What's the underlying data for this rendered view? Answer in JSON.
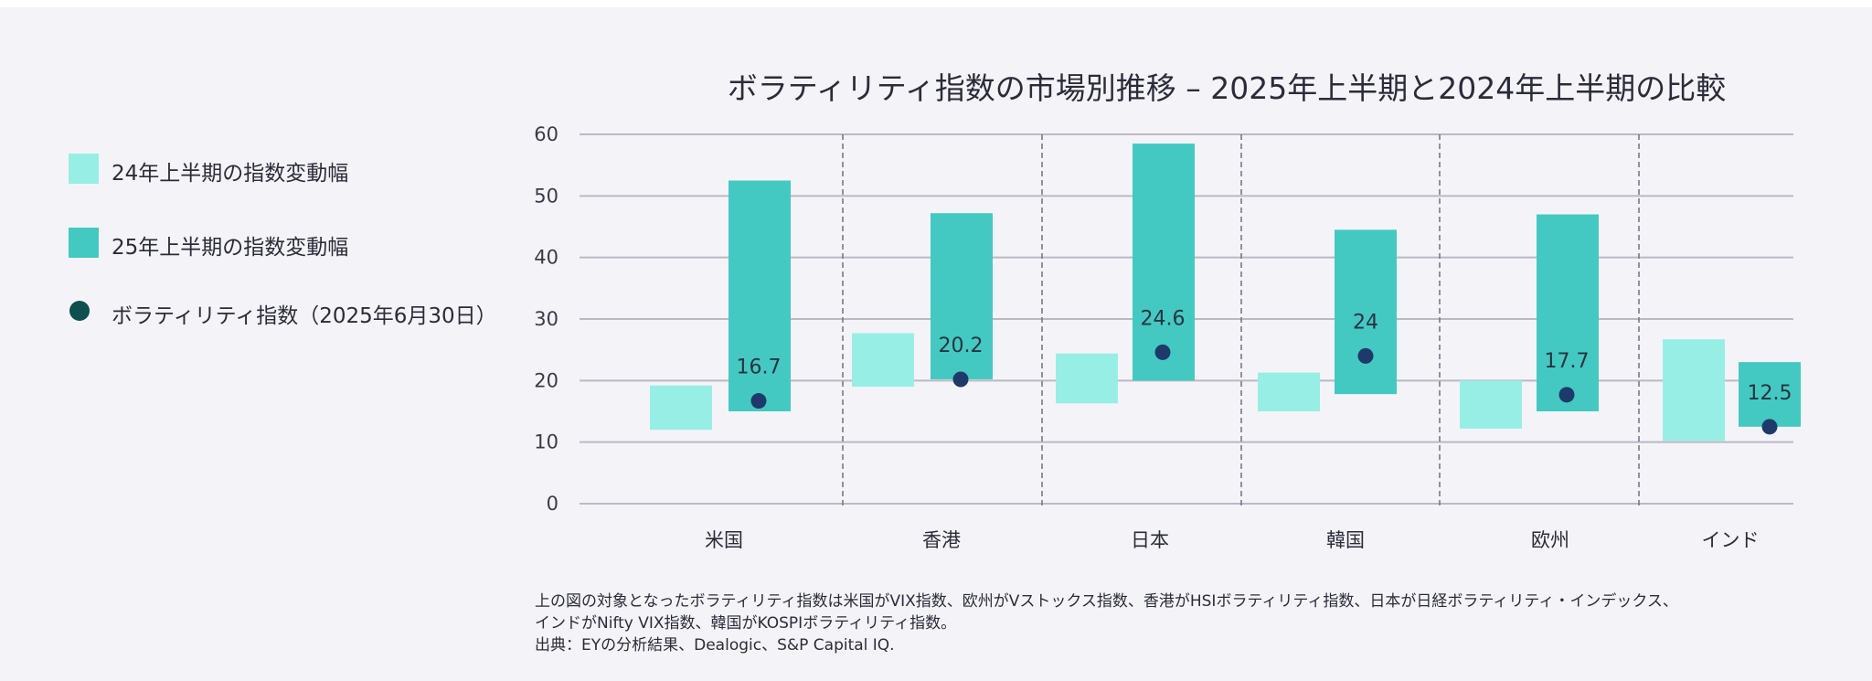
{
  "chart_data": {
    "type": "bar",
    "title": "ボラティリティ指数の市場別推移 – 2025年上半期と2024年上半期の比較",
    "categories": [
      "米国",
      "香港",
      "日本",
      "韓国",
      "欧州",
      "インド"
    ],
    "ylim": [
      0,
      60
    ],
    "yticks": [
      0,
      10,
      20,
      30,
      40,
      50,
      60
    ],
    "grid": true,
    "series": [
      {
        "name": "24年上半期の指数変動幅",
        "kind": "floating-bar",
        "color": "#97eee4",
        "ranges": [
          [
            12,
            19.2
          ],
          [
            19,
            27.7
          ],
          [
            16.3,
            24.4
          ],
          [
            15,
            21.3
          ],
          [
            12.2,
            20
          ],
          [
            10.2,
            26.7
          ]
        ]
      },
      {
        "name": "25年上半期の指数変動幅",
        "kind": "floating-bar",
        "color": "#43c9c2",
        "ranges": [
          [
            15,
            52.5
          ],
          [
            20.2,
            47.2
          ],
          [
            20,
            58.5
          ],
          [
            17.8,
            44.5
          ],
          [
            15,
            47
          ],
          [
            12.5,
            23
          ]
        ]
      },
      {
        "name": "ボラティリティ指数（2025年6月30日）",
        "kind": "point",
        "color": "#1d3a6b",
        "values": [
          16.7,
          20.2,
          24.6,
          24,
          17.7,
          12.5
        ],
        "labels": [
          "16.7",
          "20.2",
          "24.6",
          "24",
          "17.7",
          "12.5"
        ]
      }
    ],
    "xlabel": "",
    "ylabel": ""
  },
  "legend": {
    "items": [
      {
        "label": "24年上半期の指数変動幅",
        "color": "#97eee4",
        "shape": "square"
      },
      {
        "label": "25年上半期の指数変動幅",
        "color": "#43c9c2",
        "shape": "square"
      },
      {
        "label": "ボラティリティ指数（2025年6月30日）",
        "color": "#0f4f4f",
        "shape": "circle"
      }
    ]
  },
  "footnote": {
    "line1": "上の図の対象となったボラティリティ指数は米国がVIX指数、欧州がVストックス指数、香港がHSIボラティリティ指数、日本が日経ボラティリティ・インデックス、",
    "line2": "インドがNifty VIX指数、韓国がKOSPIボラティリティ指数。",
    "line3": "出典：EYの分析結果、Dealogic、S&P Capital IQ."
  }
}
